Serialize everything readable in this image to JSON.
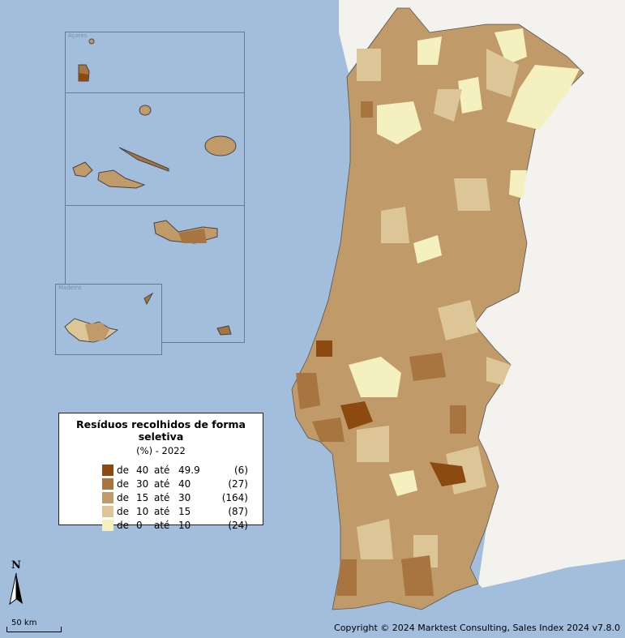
{
  "legend": {
    "title": "Resíduos recolhidos de forma seletiva",
    "subtitle": "(%) - 2022",
    "classes": [
      {
        "from_word": "de",
        "from": "40",
        "to_word": "até",
        "to": "49.9",
        "count": "(6)",
        "color": "#8b4a10"
      },
      {
        "from_word": "de",
        "from": "30",
        "to_word": "até",
        "to": "40",
        "count": "(27)",
        "color": "#a87440"
      },
      {
        "from_word": "de",
        "from": "15",
        "to_word": "até",
        "to": "30",
        "count": "(164)",
        "color": "#c09a68"
      },
      {
        "from_word": "de",
        "from": "10",
        "to_word": "até",
        "to": "15",
        "count": "(87)",
        "color": "#dcc596"
      },
      {
        "from_word": "de",
        "from": "0",
        "to_word": "até",
        "to": "10",
        "count": "(24)",
        "color": "#f5f0c0"
      }
    ]
  },
  "insets": {
    "azores": "Açores",
    "madeira": "Madeira"
  },
  "north_label": "N",
  "scale_label": "50 km",
  "copyright": "Copyright © 2024 Marktest Consulting, Sales Index 2024 v7.8.0",
  "colors": {
    "sea": "#a3bedd",
    "neighbor_land": "#f3f2ee",
    "border": "#4a4a4a"
  }
}
